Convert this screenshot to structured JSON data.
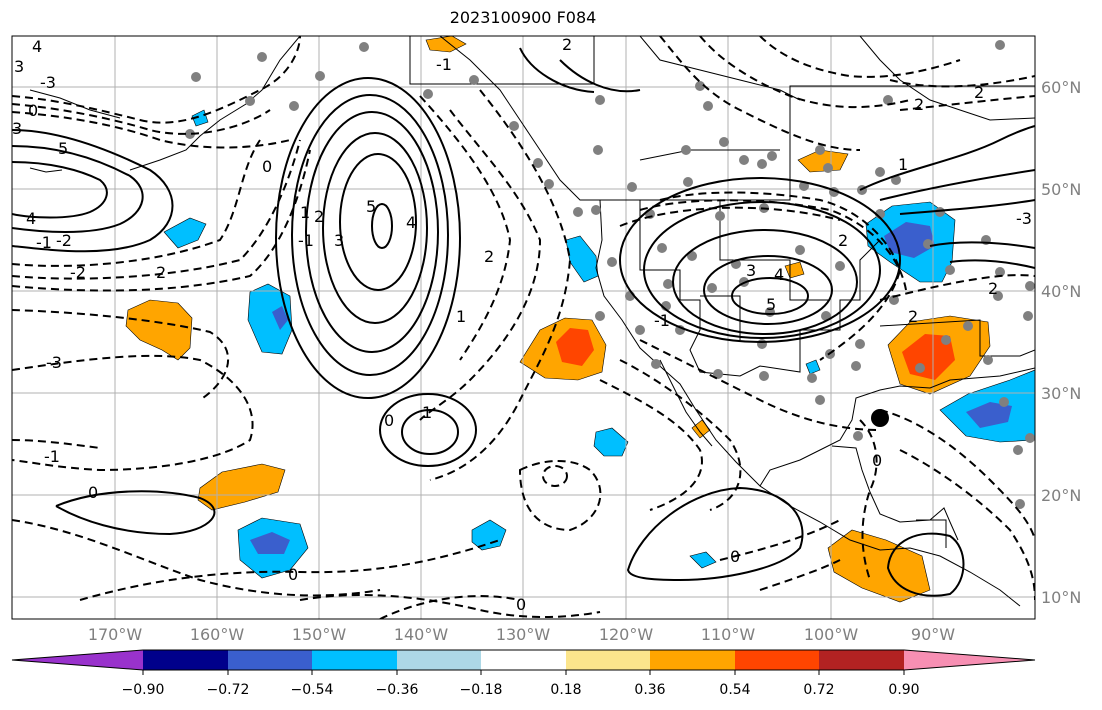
{
  "title": "2023100900 F084",
  "lon_labels": [
    "170°W",
    "160°W",
    "150°W",
    "140°W",
    "130°W",
    "120°W",
    "110°W",
    "100°W",
    "90°W"
  ],
  "lat_labels": [
    "60°N",
    "50°N",
    "40°N",
    "30°N",
    "20°N",
    "10°N"
  ],
  "colorbar": {
    "colors": [
      "#9932cc",
      "#00008b",
      "#3a5fcd",
      "#00bfff",
      "#add8e6",
      "#ffffff",
      "#fce58c",
      "#ffa500",
      "#ff4500",
      "#b22222",
      "#f78fb3"
    ],
    "tick_labels": [
      "−0.90",
      "−0.72",
      "−0.54",
      "−0.36",
      "−0.18",
      "0.18",
      "0.36",
      "0.54",
      "0.72",
      "0.90"
    ]
  },
  "contour_labels": [
    "4",
    "3",
    "0",
    "-3",
    "3",
    "5",
    "4",
    "-1",
    "-2",
    "-2",
    "2",
    "-3",
    "-1",
    "0",
    "5",
    "4",
    "3",
    "2",
    "1",
    "0",
    "-1",
    "0",
    "1",
    "0",
    "1",
    "2",
    "-1",
    "2",
    "0",
    "-1",
    "2",
    "3",
    "4",
    "5",
    "2",
    "2",
    "2",
    "1",
    "-3",
    "0",
    "2",
    "0"
  ],
  "map": {
    "extent_lon": [
      -180,
      -80
    ],
    "extent_lat": [
      8,
      66
    ],
    "marker_color": "#000000",
    "station_color": "#808080"
  }
}
